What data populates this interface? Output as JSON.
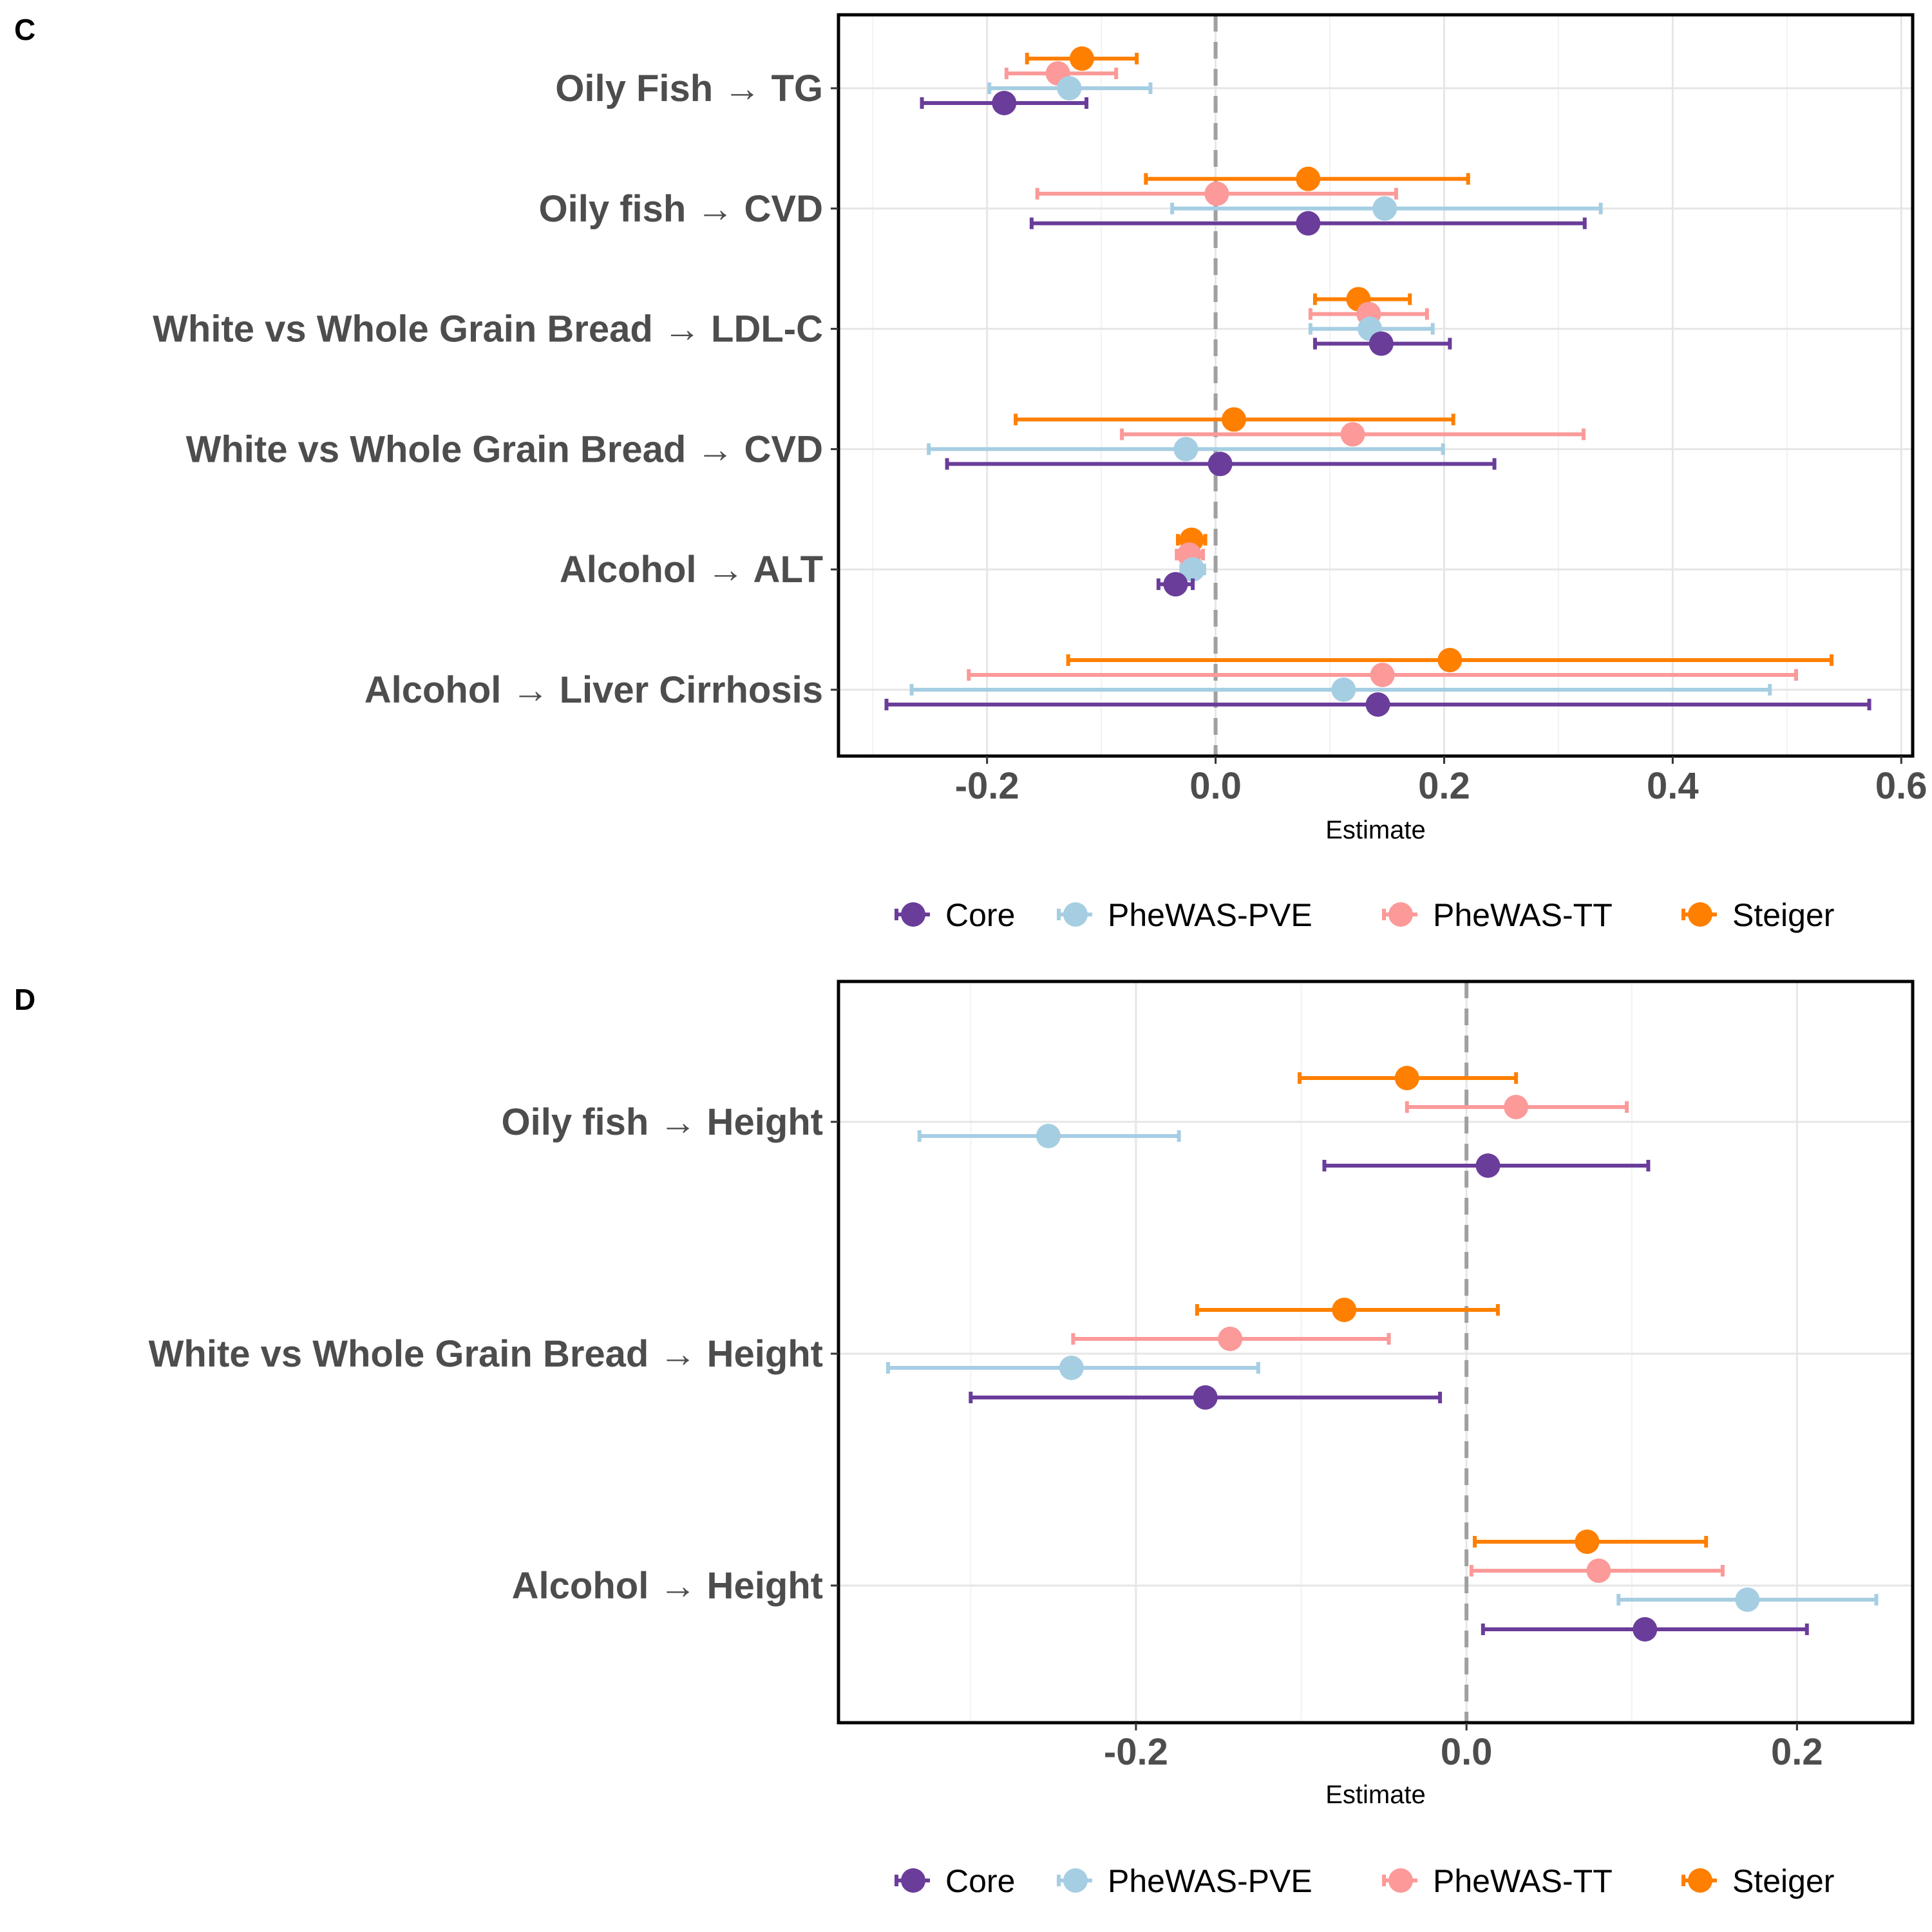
{
  "colors": {
    "Core": "#6A3D9A",
    "PheWAS-PVE": "#A6CEE3",
    "PheWAS-TT": "#FB9A99",
    "Steiger": "#FF7F00"
  },
  "legend": [
    "Core",
    "PheWAS-PVE",
    "PheWAS-TT",
    "Steiger"
  ],
  "chart_data": [
    {
      "panel": "C",
      "type": "forest",
      "xlabel": "Estimate",
      "xlim": [
        -0.33,
        0.61
      ],
      "xticks": [
        -0.2,
        0.0,
        0.2,
        0.4,
        0.6
      ],
      "xtick_labels": [
        "-0.2",
        "0.0",
        "0.2",
        "0.4",
        "0.6"
      ],
      "reference_line": 0,
      "legend_position": "bottom",
      "categories": [
        "Oily Fish → TG",
        "Oily fish → CVD",
        "White vs Whole Grain Bread → LDL-C",
        "White vs Whole Grain Bread → CVD",
        "Alcohol → ALT",
        "Alcohol → Liver Cirrhosis"
      ],
      "series": [
        {
          "name": "Steiger",
          "estimates": [
            -0.117,
            0.081,
            0.125,
            0.016,
            -0.021,
            0.205
          ],
          "lower": [
            -0.165,
            -0.061,
            0.087,
            -0.175,
            -0.033,
            -0.129
          ],
          "upper": [
            -0.069,
            0.221,
            0.17,
            0.208,
            -0.009,
            0.539
          ]
        },
        {
          "name": "PheWAS-TT",
          "estimates": [
            -0.138,
            0.001,
            0.134,
            0.12,
            -0.023,
            0.146
          ],
          "lower": [
            -0.183,
            -0.156,
            0.083,
            -0.082,
            -0.034,
            -0.216
          ],
          "upper": [
            -0.087,
            0.158,
            0.185,
            0.322,
            -0.011,
            0.508
          ]
        },
        {
          "name": "PheWAS-PVE",
          "estimates": [
            -0.128,
            0.148,
            0.135,
            -0.026,
            -0.02,
            0.112
          ],
          "lower": [
            -0.198,
            -0.038,
            0.083,
            -0.251,
            -0.03,
            -0.266
          ],
          "upper": [
            -0.057,
            0.337,
            0.19,
            0.199,
            -0.01,
            0.485
          ]
        },
        {
          "name": "Core",
          "estimates": [
            -0.185,
            0.081,
            0.145,
            0.004,
            -0.035,
            0.142
          ],
          "lower": [
            -0.257,
            -0.161,
            0.087,
            -0.235,
            -0.05,
            -0.288
          ],
          "upper": [
            -0.113,
            0.323,
            0.205,
            0.244,
            -0.02,
            0.572
          ]
        }
      ]
    },
    {
      "panel": "D",
      "type": "forest",
      "xlabel": "Estimate",
      "xlim": [
        -0.38,
        0.27
      ],
      "xticks": [
        -0.2,
        0.0,
        0.2
      ],
      "xtick_labels": [
        "-0.2",
        "0.0",
        "0.2"
      ],
      "reference_line": 0,
      "legend_position": "bottom",
      "categories": [
        "Oily fish → Height",
        "White vs Whole Grain Bread → Height",
        "Alcohol → Height"
      ],
      "series": [
        {
          "name": "Steiger",
          "estimates": [
            -0.036,
            -0.074,
            0.073
          ],
          "lower": [
            -0.101,
            -0.163,
            0.005
          ],
          "upper": [
            0.03,
            0.019,
            0.145
          ]
        },
        {
          "name": "PheWAS-TT",
          "estimates": [
            0.03,
            -0.143,
            0.08
          ],
          "lower": [
            -0.036,
            -0.238,
            0.003
          ],
          "upper": [
            0.097,
            -0.047,
            0.155
          ]
        },
        {
          "name": "PheWAS-PVE",
          "estimates": [
            -0.253,
            -0.239,
            0.17
          ],
          "lower": [
            -0.331,
            -0.35,
            0.092
          ],
          "upper": [
            -0.174,
            -0.126,
            0.248
          ]
        },
        {
          "name": "Core",
          "estimates": [
            0.013,
            -0.158,
            0.108
          ],
          "lower": [
            -0.086,
            -0.3,
            0.01
          ],
          "upper": [
            0.11,
            -0.016,
            0.206
          ]
        }
      ]
    }
  ]
}
